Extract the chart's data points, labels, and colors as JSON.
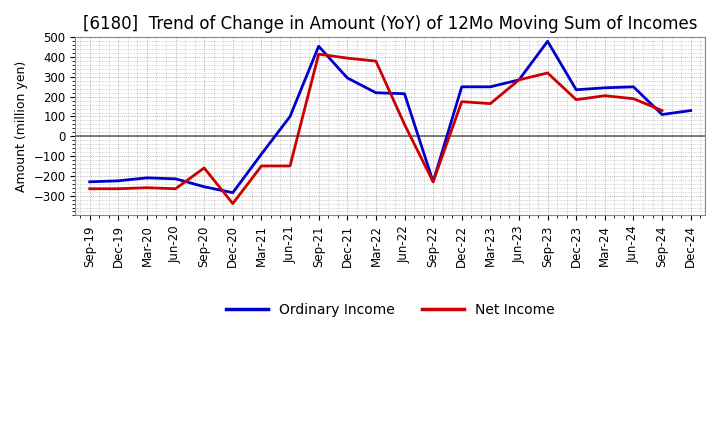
{
  "title": "[6180]  Trend of Change in Amount (YoY) of 12Mo Moving Sum of Incomes",
  "ylabel": "Amount (million yen)",
  "ylim": [
    -400,
    500
  ],
  "yticks": [
    -300,
    -200,
    -100,
    0,
    100,
    200,
    300,
    400,
    500
  ],
  "x_labels": [
    "Sep-19",
    "Dec-19",
    "Mar-20",
    "Jun-20",
    "Sep-20",
    "Dec-20",
    "Mar-21",
    "Jun-21",
    "Sep-21",
    "Dec-21",
    "Mar-22",
    "Jun-22",
    "Sep-22",
    "Dec-22",
    "Mar-23",
    "Jun-23",
    "Sep-23",
    "Dec-23",
    "Mar-24",
    "Jun-24",
    "Sep-24",
    "Dec-24"
  ],
  "ordinary_income": [
    -230,
    -225,
    -210,
    -215,
    -255,
    -285,
    -90,
    100,
    455,
    295,
    220,
    215,
    -230,
    250,
    250,
    285,
    480,
    235,
    245,
    250,
    110,
    130
  ],
  "net_income": [
    -265,
    -265,
    -260,
    -265,
    -160,
    -340,
    -150,
    -150,
    415,
    395,
    380,
    60,
    -230,
    175,
    165,
    285,
    320,
    185,
    205,
    190,
    130,
    null
  ],
  "ordinary_color": "#0000cc",
  "net_color": "#cc0000",
  "bg_color": "#FFFFFF",
  "plot_bg_color": "#FFFFFF",
  "grid_color": "#999999",
  "zero_line_color": "#666666",
  "legend_labels": [
    "Ordinary Income",
    "Net Income"
  ],
  "title_fontsize": 12,
  "axis_fontsize": 9,
  "tick_fontsize": 8.5,
  "line_width": 2.0
}
